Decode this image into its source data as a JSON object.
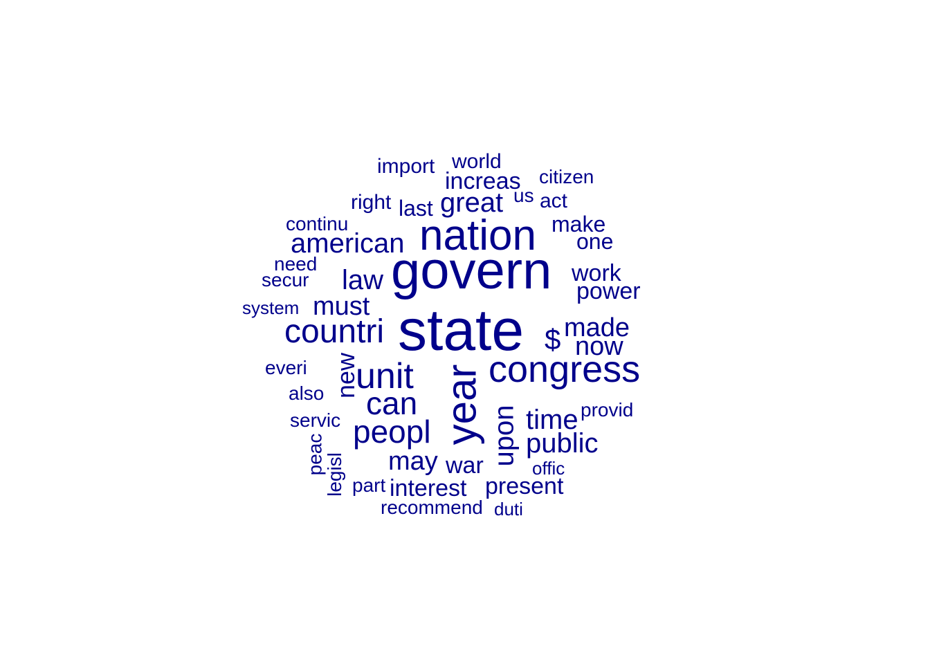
{
  "cloud": {
    "color": "#00008B",
    "background": "#FFFFFF",
    "words": [
      "state",
      "govern",
      "nation",
      "year",
      "congress",
      "countri",
      "unit",
      "can",
      "peopl",
      "american",
      "great",
      "upon",
      "public",
      "time",
      "must",
      "law",
      "made",
      "now",
      "$",
      "new",
      "may",
      "war",
      "interest",
      "present",
      "power",
      "work",
      "make",
      "increas",
      "one",
      "last",
      "import",
      "world",
      "act",
      "us",
      "citizen",
      "right",
      "continu",
      "need",
      "secur",
      "system",
      "everi",
      "also",
      "servic",
      "provid",
      "peac",
      "legisl",
      "part",
      "offic",
      "recommend",
      "duti"
    ]
  }
}
